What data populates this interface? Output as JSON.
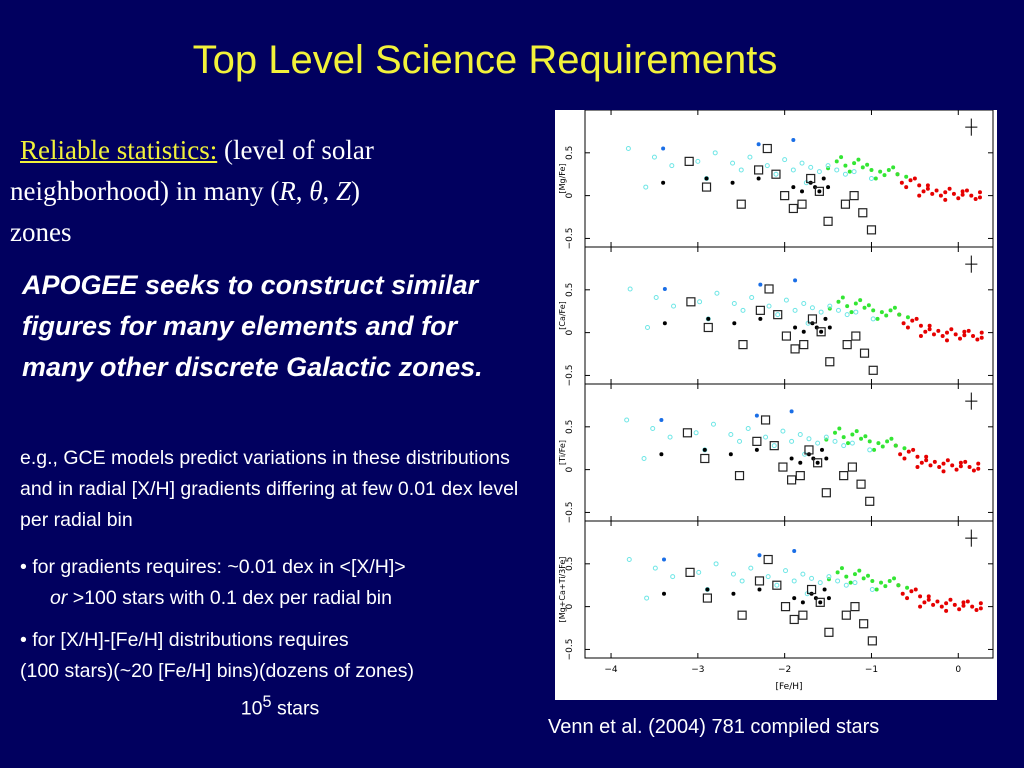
{
  "slide": {
    "title": "Top Level Science Requirements",
    "reliable_label": "Reliable statistics:",
    "reliable_rest": "(level of solar",
    "reliable_line2a": "neighborhood) in many (",
    "R": "R",
    "comma1": ", ",
    "theta": "θ",
    "comma2": ", ",
    "Z": "Z",
    "close": ")",
    "reliable_line3": "zones",
    "apogee_text": "APOGEE seeks to construct similar figures for many elements and for many other discrete Galactic zones.",
    "eg_text": "e.g., GCE models predict variations in these distributions and in radial [X/H] gradients differing at few 0.01 dex level per radial bin",
    "bullet1_line1": "• for gradients requires: ~0.01 dex in <[X/H]>",
    "bullet1_or": "or",
    "bullet1_rest": " >100 stars with 0.1 dex per radial bin",
    "bullet2_line1": "• for [X/H]-[Fe/H] distributions requires",
    "bullet2_line2": "(100 stars)(~20 [Fe/H] bins)(dozens of zones)",
    "bullet2_base": "10",
    "bullet2_exp": "5",
    "bullet2_tail": " stars",
    "caption": "Venn et al. (2004) 781 compiled stars"
  },
  "colors": {
    "background": "#01005f",
    "title": "#f2f23a",
    "text": "#ffffff",
    "thick_disk": "#33e633",
    "halo": "#6ee6e6",
    "thin_disk": "#e60000",
    "other": "#000000",
    "high_velocity": "#1a6ee6"
  },
  "chart_data": {
    "type": "scatter",
    "xlabel": "[Fe/H]",
    "xlim": [
      -4.3,
      0.4
    ],
    "ylim": [
      -0.6,
      1.0
    ],
    "xticks": [
      "−4",
      "−3",
      "−2",
      "−1",
      "0"
    ],
    "yticks": [
      "−0.5",
      "0",
      "0.5"
    ],
    "panels": [
      {
        "ylabel": "[Mg/Fe]"
      },
      {
        "ylabel": "[Ca/Fe]"
      },
      {
        "ylabel": "[Ti/Fe]"
      },
      {
        "ylabel": "[Mg+Ca+Ti/3Fe]"
      }
    ],
    "error_bar": {
      "x": 0.15,
      "y": 0.8,
      "dx": 0.07,
      "dy": 0.2
    },
    "series": [
      {
        "marker": "red-filled-circle",
        "x": [
          -0.7,
          -0.55,
          -0.45,
          -0.35,
          -0.25,
          -0.15,
          -0.05,
          0.05,
          0.15,
          0.25,
          -0.6,
          -0.4,
          -0.2,
          0.0,
          0.2,
          -0.5,
          -0.3,
          -0.1,
          0.1,
          -0.65,
          -0.35,
          -0.15,
          0.05,
          0.25,
          -0.45
        ],
        "y": [
          0.25,
          0.18,
          0.12,
          0.08,
          0.06,
          0.04,
          0.02,
          0.01,
          0.0,
          -0.02,
          0.1,
          0.05,
          0.0,
          -0.03,
          -0.04,
          0.2,
          0.02,
          0.08,
          0.06,
          0.15,
          0.12,
          -0.05,
          0.05,
          0.04,
          0.0
        ]
      },
      {
        "marker": "green-filled-circle",
        "x": [
          -1.4,
          -1.3,
          -1.2,
          -1.1,
          -1.0,
          -0.9,
          -0.8,
          -0.7,
          -0.6,
          -1.5,
          -1.25,
          -1.05,
          -0.85,
          -0.95,
          -1.15,
          -1.35,
          -0.75
        ],
        "y": [
          0.4,
          0.35,
          0.38,
          0.33,
          0.3,
          0.28,
          0.3,
          0.25,
          0.22,
          0.32,
          0.28,
          0.36,
          0.24,
          0.2,
          0.42,
          0.45,
          0.33
        ]
      },
      {
        "marker": "cyan-open-circle",
        "x": [
          -3.8,
          -3.5,
          -3.3,
          -3.0,
          -2.8,
          -2.6,
          -2.4,
          -2.2,
          -2.0,
          -1.9,
          -1.8,
          -1.7,
          -1.6,
          -1.5,
          -1.4,
          -1.3,
          -1.2,
          -1.0,
          -3.6,
          -2.9,
          -2.5,
          -2.1,
          -1.75
        ],
        "y": [
          0.55,
          0.45,
          0.35,
          0.4,
          0.5,
          0.38,
          0.45,
          0.35,
          0.42,
          0.3,
          0.38,
          0.33,
          0.28,
          0.35,
          0.3,
          0.25,
          0.28,
          0.2,
          0.1,
          0.2,
          0.3,
          0.25,
          0.15
        ]
      },
      {
        "marker": "black-filled-circle",
        "x": [
          -3.4,
          -2.9,
          -2.3,
          -1.9,
          -1.8,
          -1.7,
          -1.65,
          -1.6,
          -1.55,
          -1.5,
          -2.6
        ],
        "y": [
          0.15,
          0.2,
          0.2,
          0.1,
          0.05,
          0.15,
          0.1,
          0.05,
          0.2,
          0.1,
          0.15
        ]
      },
      {
        "marker": "black-open-square",
        "x": [
          -3.1,
          -2.9,
          -2.5,
          -2.3,
          -2.1,
          -2.0,
          -1.9,
          -1.8,
          -1.7,
          -1.6,
          -1.5,
          -1.3,
          -1.2,
          -1.1,
          -1.0,
          -2.2
        ],
        "y": [
          0.4,
          0.1,
          -0.1,
          0.3,
          0.25,
          0.0,
          -0.15,
          -0.1,
          0.2,
          0.05,
          -0.3,
          -0.1,
          0.0,
          -0.2,
          -0.4,
          0.55
        ]
      },
      {
        "marker": "blue-filled-circle",
        "x": [
          -3.4,
          -2.3,
          -1.9
        ],
        "y": [
          0.55,
          0.6,
          0.65
        ]
      }
    ]
  }
}
